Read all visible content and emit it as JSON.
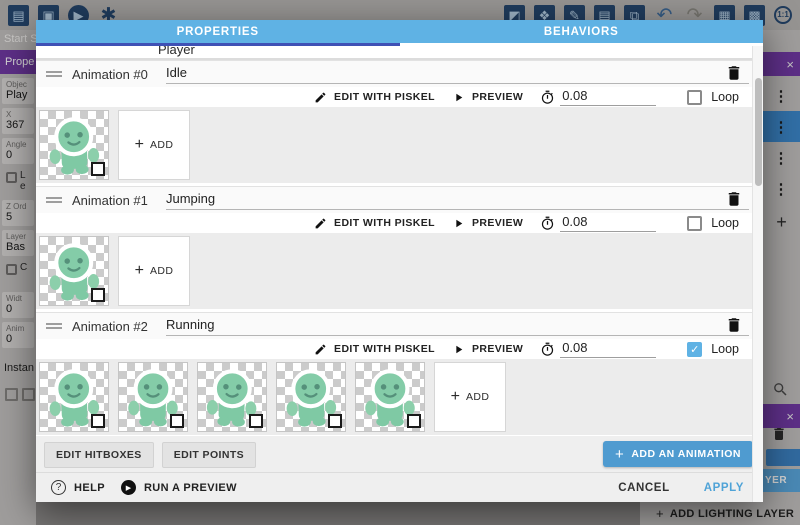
{
  "app": {
    "toolbar": {
      "left_icons": [
        {
          "name": "project-manager-icon",
          "glyph": "▤"
        },
        {
          "name": "window-icon",
          "glyph": "▣"
        },
        {
          "name": "play-icon",
          "glyph": "▶"
        },
        {
          "name": "debug-icon",
          "glyph": "✱"
        }
      ],
      "right_icons": [
        {
          "name": "add-object-icon",
          "glyph": "◩"
        },
        {
          "name": "ungroup-icon",
          "glyph": "❖"
        },
        {
          "name": "edit-icon",
          "glyph": "✎"
        },
        {
          "name": "object-list-icon",
          "glyph": "▤"
        },
        {
          "name": "layers-icon",
          "glyph": "⧉"
        },
        {
          "name": "undo-icon",
          "glyph": "↶"
        },
        {
          "name": "redo-icon",
          "glyph": "↷"
        },
        {
          "name": "mask-icon",
          "glyph": "▦"
        },
        {
          "name": "grid-icon",
          "glyph": "▩"
        },
        {
          "name": "zoom-1-1-icon",
          "glyph": "1:1"
        }
      ]
    },
    "left_panel": {
      "tab_label": "Start S",
      "header": "Prope",
      "fields": [
        {
          "label": "Objec",
          "value": "Play",
          "checkbox": false
        },
        {
          "label": "X",
          "value": "367",
          "checkbox": false
        },
        {
          "label": "Angle",
          "value": "0",
          "checkbox": false
        },
        {
          "label": "L",
          "value": "e",
          "checkbox": true
        },
        {
          "label": "Z Ord",
          "value": "5",
          "checkbox": false
        },
        {
          "label": "Layer",
          "value": "Bas",
          "checkbox": false
        },
        {
          "label": "C",
          "value": "",
          "checkbox": true
        },
        {
          "label": "Widt",
          "value": "0",
          "checkbox": false
        },
        {
          "label": "Anim",
          "value": "0",
          "checkbox": false
        }
      ],
      "footer": "Instan"
    },
    "right_panel": {
      "close_glyph": "×",
      "menu_glyph": "⋮",
      "menu_row_count": 4,
      "selected_index": 1,
      "add_glyph": "+",
      "add_layer_label": "YER",
      "add_lighting_layer_label": "ADD LIGHTING LAYER"
    }
  },
  "dialog": {
    "tabs": [
      {
        "label": "PROPERTIES"
      },
      {
        "label": "BEHAVIORS"
      }
    ],
    "object_name": "Player",
    "animations": [
      {
        "title": "Animation #0",
        "name": "Idle",
        "frame_count": 1,
        "time": "0.08",
        "loop": false
      },
      {
        "title": "Animation #1",
        "name": "Jumping",
        "frame_count": 1,
        "time": "0.08",
        "loop": false
      },
      {
        "title": "Animation #2",
        "name": "Running",
        "frame_count": 5,
        "time": "0.08",
        "loop": true
      }
    ],
    "row_actions": {
      "edit_piskel": "EDIT WITH PISKEL",
      "preview": "PREVIEW",
      "loop_label": "Loop",
      "add_label": "ADD"
    },
    "footer": {
      "edit_hitboxes": "EDIT HITBOXES",
      "edit_points": "EDIT POINTS",
      "add_animation": "ADD AN ANIMATION",
      "help": "HELP",
      "run_preview": "RUN A PREVIEW",
      "cancel": "CANCEL",
      "apply": "APPLY"
    }
  },
  "colors": {
    "tab_bar": "#5fb2e4",
    "tab_indicator": "#3f51b5",
    "accent_blue": "#4f9bd0",
    "loop_checked": "#5fb2e4",
    "purple": "#6f37a3",
    "selected_row": "#3a86c8",
    "sprite_green": "#7fc9a4"
  }
}
